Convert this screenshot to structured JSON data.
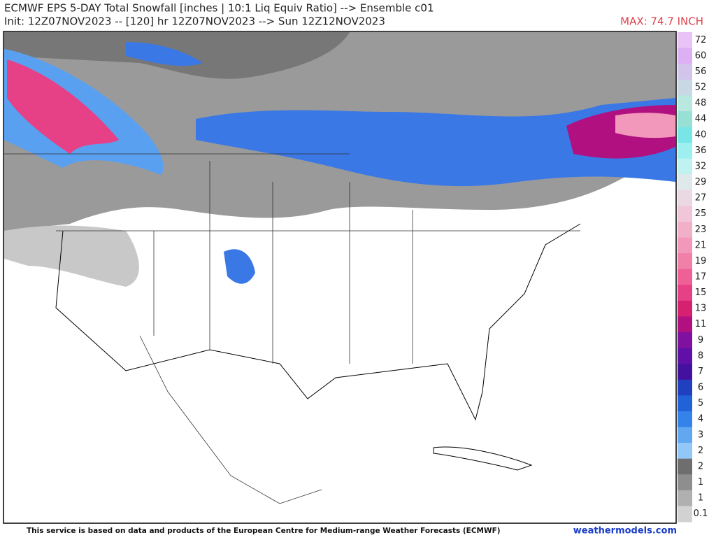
{
  "header": {
    "title": "ECMWF EPS 5-DAY Total Snowfall [inches | 10:1 Liq Equiv Ratio] --> Ensemble c01",
    "subtitle": "Init: 12Z07NOV2023 -- [120] hr 12Z07NOV2023 --> Sun 12Z12NOV2023",
    "max": "MAX: 74.7 INCH"
  },
  "legend": {
    "items": [
      {
        "label": "72",
        "color": "#e9c2f7"
      },
      {
        "label": "60",
        "color": "#dcb0f2"
      },
      {
        "label": "56",
        "color": "#d2c4ea"
      },
      {
        "label": "52",
        "color": "#c8d8e4"
      },
      {
        "label": "48",
        "color": "#b8e8de"
      },
      {
        "label": "44",
        "color": "#98e0d4"
      },
      {
        "label": "40",
        "color": "#78e6e6"
      },
      {
        "label": "36",
        "color": "#9ef0f0"
      },
      {
        "label": "32",
        "color": "#c0f2f2"
      },
      {
        "label": "29",
        "color": "#dfe8ea"
      },
      {
        "label": "27",
        "color": "#ead8e2"
      },
      {
        "label": "25",
        "color": "#f0c6d8"
      },
      {
        "label": "23",
        "color": "#f2b0c8"
      },
      {
        "label": "21",
        "color": "#f298ba"
      },
      {
        "label": "19",
        "color": "#f080a8"
      },
      {
        "label": "17",
        "color": "#ee6096"
      },
      {
        "label": "15",
        "color": "#e64086"
      },
      {
        "label": "13",
        "color": "#d62070"
      },
      {
        "label": "11",
        "color": "#b01080"
      },
      {
        "label": "9",
        "color": "#8010a0"
      },
      {
        "label": "8",
        "color": "#6010a8"
      },
      {
        "label": "7",
        "color": "#4410a0"
      },
      {
        "label": "6",
        "color": "#2040c0"
      },
      {
        "label": "5",
        "color": "#2262d8"
      },
      {
        "label": "4",
        "color": "#3482ea"
      },
      {
        "label": "3",
        "color": "#62a8f0"
      },
      {
        "label": "2",
        "color": "#92c8f8"
      },
      {
        "label": "2",
        "color": "#6e6e6e"
      },
      {
        "label": "1",
        "color": "#8e8e8e"
      },
      {
        "label": "1",
        "color": "#b0b0b0"
      },
      {
        "label": "0.1",
        "color": "#d2d2d2"
      }
    ]
  },
  "footer": {
    "notice": "This service is based on data and products of the European Centre for Medium-range Weather Forecasts (ECMWF)",
    "credit": "weathermodels.com"
  }
}
